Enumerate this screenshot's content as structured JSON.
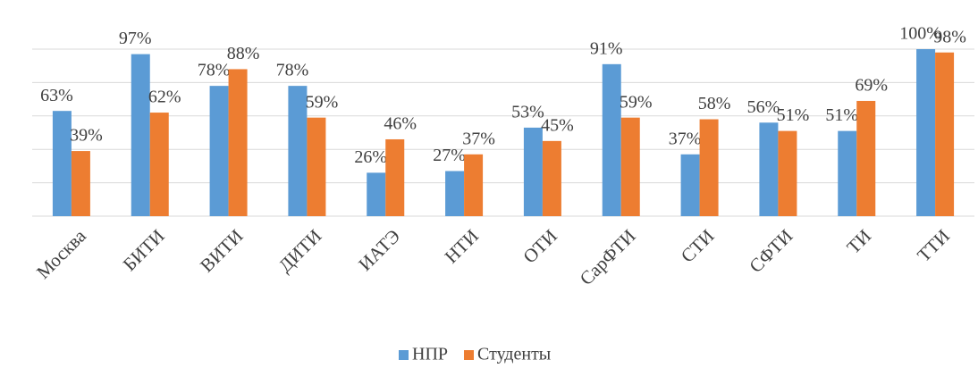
{
  "chart_data": {
    "type": "bar",
    "categories": [
      "Москва",
      "БИТИ",
      "ВИТИ",
      "ДИТИ",
      "ИАТЭ",
      "НТИ",
      "ОТИ",
      "СарФТИ",
      "СТИ",
      "СФТИ",
      "ТИ",
      "ТТИ"
    ],
    "series": [
      {
        "name": "НПР",
        "color": "#5b9bd5",
        "values": [
          63,
          97,
          78,
          78,
          26,
          27,
          53,
          91,
          37,
          56,
          51,
          100
        ],
        "value_labels": [
          "63%",
          "97%",
          "78%",
          "78%",
          "26%",
          "27%",
          "53%",
          "91%",
          "37%",
          "56%",
          "51%",
          "100%"
        ]
      },
      {
        "name": "Студенты",
        "color": "#ed7d31",
        "values": [
          39,
          62,
          88,
          59,
          46,
          37,
          45,
          59,
          58,
          51,
          69,
          98
        ],
        "value_labels": [
          "39%",
          "62%",
          "88%",
          "59%",
          "46%",
          "37%",
          "45%",
          "59%",
          "58%",
          "51%",
          "69%",
          "98%"
        ]
      }
    ],
    "ylim": [
      0,
      100
    ],
    "yticks": [
      0,
      20,
      40,
      60,
      80,
      100
    ],
    "grid": true,
    "legend": "bottom"
  }
}
